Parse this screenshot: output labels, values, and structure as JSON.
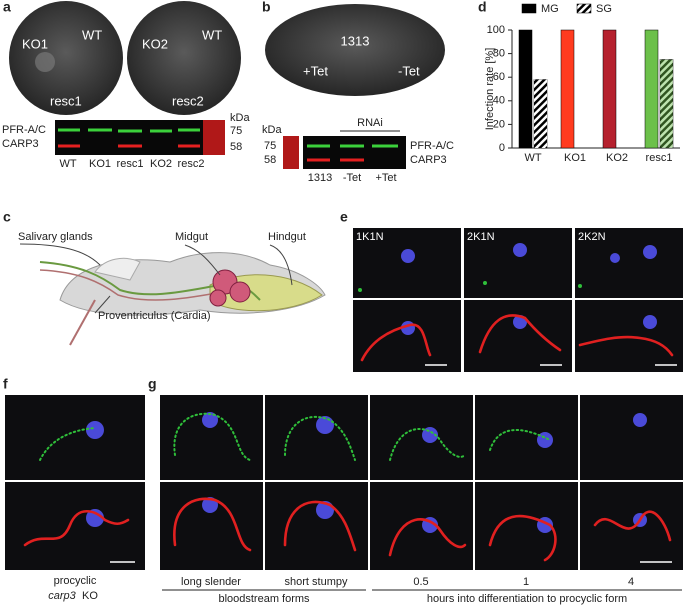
{
  "panel_labels": [
    "a",
    "b",
    "c",
    "d",
    "e",
    "f",
    "g"
  ],
  "panel_a": {
    "plates": [
      [
        "KO1",
        "WT",
        "resc1"
      ],
      [
        "KO2",
        "WT",
        "resc2"
      ]
    ],
    "blot": {
      "bands": [
        "PFR-A/C",
        "CARP3"
      ],
      "unit": "kDa",
      "markers": [
        "75",
        "58"
      ],
      "lanes": [
        "WT",
        "KO1",
        "resc1",
        "KO2",
        "resc2"
      ]
    }
  },
  "panel_b": {
    "plate": [
      "1313",
      "+Tet",
      "-Tet"
    ],
    "blot": {
      "unit": "kDa",
      "markers": [
        "75",
        "58"
      ],
      "group": "RNAi",
      "bands": [
        "PFR-A/C",
        "CARP3"
      ],
      "lanes": [
        "1313",
        "-Tet",
        "+Tet"
      ]
    }
  },
  "panel_c": {
    "labels": [
      "Salivary glands",
      "Midgut",
      "Hindgut",
      "Proventriculus (Cardia)"
    ]
  },
  "panel_e": {
    "columns": [
      "1K1N",
      "2K1N",
      "2K2N"
    ]
  },
  "panel_f": {
    "caption": [
      "procyclic",
      "carp3",
      "KO"
    ]
  },
  "panel_g": {
    "columns": [
      "long slender",
      "short stumpy",
      "0.5",
      "1",
      "4"
    ],
    "groups": [
      "bloodstream forms",
      "hours into differentiation to procyclic form"
    ]
  },
  "chart_data": {
    "type": "bar",
    "y_label": "Infection rate [%]",
    "categories": [
      "WT",
      "KO1",
      "KO2",
      "resc1"
    ],
    "bar_colors": [
      "#000000",
      "#ff3b1f",
      "#b5212e",
      "#6cc04a"
    ],
    "series": [
      {
        "name": "MG",
        "color": "#000000",
        "values": [
          100,
          100,
          100,
          100
        ]
      },
      {
        "name": "SG",
        "color": "#000000",
        "values": [
          58,
          0,
          0,
          75
        ]
      }
    ],
    "ylim": [
      0,
      100
    ],
    "yticks": [
      0,
      20,
      40,
      60,
      80,
      100
    ],
    "legend": "top"
  }
}
